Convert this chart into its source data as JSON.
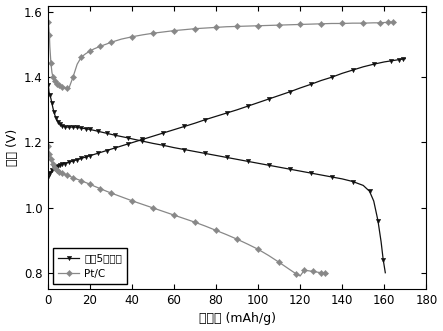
{
  "xlabel": "比容量 (mAh/g)",
  "ylabel": "电压 (V)",
  "xlim": [
    0,
    180
  ],
  "ylim": [
    0.75,
    1.62
  ],
  "yticks": [
    0.8,
    1.0,
    1.2,
    1.4,
    1.6
  ],
  "xticks": [
    0,
    20,
    40,
    60,
    80,
    100,
    120,
    140,
    160,
    180
  ],
  "black_color": "#111111",
  "gray_color": "#888888",
  "legend1": "方案5催化剂",
  "legend2": "Pt/C",
  "black_discharge_x": [
    0.3,
    0.6,
    1.0,
    1.5,
    2.0,
    2.5,
    3.0,
    3.5,
    4.0,
    4.5,
    5.0,
    5.5,
    6.0,
    6.5,
    7.0,
    7.5,
    8.0,
    9.0,
    10.0,
    11.0,
    12.0,
    13.0,
    14.0,
    15.0,
    16.0,
    17.0,
    18.0,
    19.0,
    20.0,
    22.0,
    24.0,
    26.0,
    28.0,
    30.0,
    32.0,
    35.0,
    38.0,
    40.0,
    45.0,
    50.0,
    55.0,
    60.0,
    65.0,
    70.0,
    75.0,
    80.0,
    85.0,
    90.0,
    95.0,
    100.0,
    105.0,
    110.0,
    115.0,
    120.0,
    125.0,
    130.0,
    135.0,
    140.0,
    145.0,
    150.0,
    153.0,
    155.0,
    157.0,
    158.5,
    159.5,
    160.5
  ],
  "black_discharge_y": [
    1.375,
    1.355,
    1.345,
    1.335,
    1.32,
    1.305,
    1.292,
    1.282,
    1.275,
    1.268,
    1.263,
    1.258,
    1.255,
    1.252,
    1.25,
    1.249,
    1.248,
    1.247,
    1.247,
    1.247,
    1.247,
    1.247,
    1.246,
    1.245,
    1.244,
    1.243,
    1.242,
    1.241,
    1.24,
    1.237,
    1.234,
    1.231,
    1.228,
    1.225,
    1.222,
    1.218,
    1.214,
    1.211,
    1.204,
    1.197,
    1.191,
    1.184,
    1.178,
    1.172,
    1.166,
    1.16,
    1.154,
    1.148,
    1.142,
    1.136,
    1.13,
    1.124,
    1.118,
    1.112,
    1.106,
    1.1,
    1.094,
    1.088,
    1.08,
    1.068,
    1.05,
    1.02,
    0.96,
    0.895,
    0.84,
    0.8
  ],
  "black_charge_x": [
    0.3,
    0.6,
    1.0,
    1.5,
    2.0,
    2.5,
    3.0,
    3.5,
    4.0,
    4.5,
    5.0,
    5.5,
    6.0,
    6.5,
    7.0,
    7.5,
    8.0,
    9.0,
    10.0,
    11.0,
    12.0,
    13.0,
    14.0,
    15.0,
    16.0,
    17.0,
    18.0,
    19.0,
    20.0,
    22.0,
    24.0,
    26.0,
    28.0,
    30.0,
    32.0,
    35.0,
    38.0,
    40.0,
    45.0,
    50.0,
    55.0,
    60.0,
    65.0,
    70.0,
    75.0,
    80.0,
    85.0,
    90.0,
    95.0,
    100.0,
    105.0,
    110.0,
    115.0,
    120.0,
    125.0,
    130.0,
    135.0,
    140.0,
    145.0,
    150.0,
    155.0,
    160.0,
    163.0,
    165.0,
    167.0,
    168.0,
    169.0,
    170.0
  ],
  "black_charge_y": [
    1.095,
    1.1,
    1.105,
    1.11,
    1.115,
    1.118,
    1.121,
    1.123,
    1.125,
    1.127,
    1.128,
    1.13,
    1.131,
    1.132,
    1.133,
    1.134,
    1.135,
    1.137,
    1.139,
    1.141,
    1.143,
    1.145,
    1.147,
    1.149,
    1.151,
    1.153,
    1.155,
    1.157,
    1.159,
    1.163,
    1.167,
    1.171,
    1.175,
    1.179,
    1.183,
    1.189,
    1.195,
    1.199,
    1.209,
    1.219,
    1.229,
    1.239,
    1.249,
    1.259,
    1.27,
    1.28,
    1.29,
    1.3,
    1.311,
    1.322,
    1.333,
    1.344,
    1.355,
    1.367,
    1.378,
    1.39,
    1.4,
    1.412,
    1.422,
    1.432,
    1.44,
    1.447,
    1.45,
    1.452,
    1.454,
    1.455,
    1.456,
    1.457
  ],
  "gray_discharge_x": [
    0.3,
    0.5,
    0.8,
    1.0,
    1.5,
    2.0,
    2.5,
    3.0,
    3.5,
    4.0,
    4.5,
    5.0,
    5.5,
    6.0,
    7.0,
    8.0,
    9.0,
    10.0,
    12.0,
    14.0,
    16.0,
    18.0,
    20.0,
    22.0,
    25.0,
    28.0,
    30.0,
    35.0,
    40.0,
    45.0,
    50.0,
    55.0,
    60.0,
    65.0,
    70.0,
    75.0,
    80.0,
    85.0,
    90.0,
    95.0,
    100.0,
    105.0,
    110.0,
    115.0,
    118.0,
    120.0,
    122.0,
    124.0,
    126.0,
    128.0,
    130.0,
    131.0,
    132.0,
    133.0
  ],
  "gray_discharge_y": [
    1.19,
    1.175,
    1.165,
    1.158,
    1.148,
    1.14,
    1.133,
    1.127,
    1.122,
    1.118,
    1.115,
    1.112,
    1.11,
    1.108,
    1.105,
    1.102,
    1.1,
    1.097,
    1.092,
    1.087,
    1.082,
    1.077,
    1.072,
    1.066,
    1.058,
    1.05,
    1.045,
    1.033,
    1.021,
    1.01,
    0.999,
    0.988,
    0.977,
    0.966,
    0.955,
    0.943,
    0.93,
    0.917,
    0.903,
    0.888,
    0.872,
    0.853,
    0.832,
    0.81,
    0.797,
    0.79,
    0.808,
    0.806,
    0.804,
    0.802,
    0.8,
    0.799,
    0.798,
    0.796
  ],
  "gray_charge_x": [
    0.3,
    0.5,
    0.8,
    1.0,
    1.5,
    2.0,
    2.5,
    3.0,
    3.5,
    4.0,
    4.5,
    5.0,
    5.5,
    6.0,
    7.0,
    8.0,
    9.0,
    10.0,
    12.0,
    14.0,
    16.0,
    18.0,
    20.0,
    22.0,
    25.0,
    28.0,
    30.0,
    35.0,
    40.0,
    45.0,
    50.0,
    55.0,
    60.0,
    65.0,
    70.0,
    75.0,
    80.0,
    85.0,
    90.0,
    95.0,
    100.0,
    105.0,
    110.0,
    115.0,
    120.0,
    125.0,
    130.0,
    135.0,
    140.0,
    145.0,
    150.0,
    155.0,
    158.0,
    160.0,
    162.0,
    163.0,
    164.0,
    165.0
  ],
  "gray_charge_y": [
    1.57,
    1.555,
    1.53,
    1.495,
    1.445,
    1.415,
    1.4,
    1.392,
    1.387,
    1.383,
    1.38,
    1.378,
    1.376,
    1.374,
    1.371,
    1.369,
    1.367,
    1.365,
    1.4,
    1.44,
    1.462,
    1.472,
    1.48,
    1.487,
    1.495,
    1.502,
    1.507,
    1.517,
    1.524,
    1.53,
    1.535,
    1.539,
    1.543,
    1.546,
    1.549,
    1.551,
    1.553,
    1.555,
    1.556,
    1.557,
    1.558,
    1.559,
    1.56,
    1.561,
    1.562,
    1.563,
    1.564,
    1.565,
    1.565,
    1.566,
    1.566,
    1.567,
    1.567,
    1.568,
    1.568,
    1.569,
    1.569,
    1.57
  ]
}
